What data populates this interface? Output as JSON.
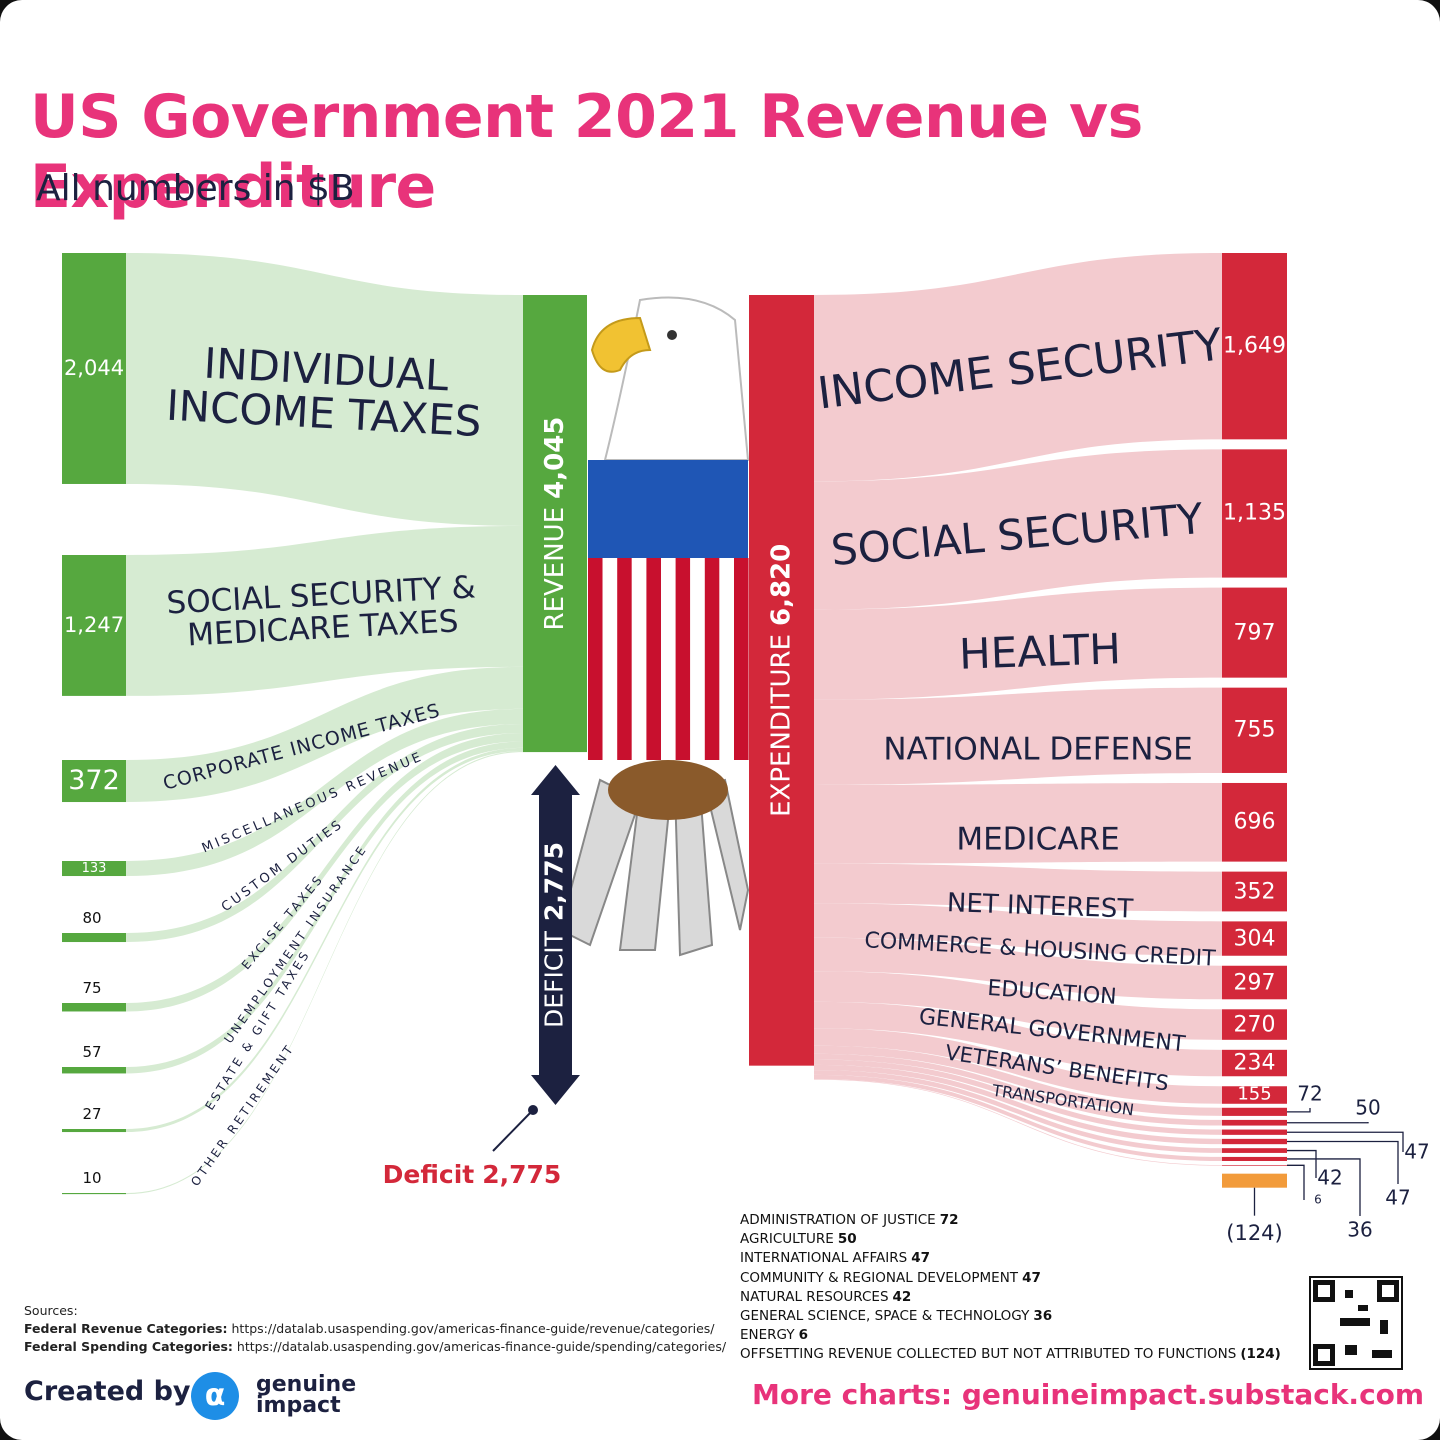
{
  "chart_data": {
    "type": "sankey",
    "title": "US Government 2021 Revenue vs Expenditure",
    "subtitle": "All numbers in $B",
    "revenue": {
      "label": "REVENUE",
      "value": 4045,
      "value_label": "4,045",
      "color": "#56a83f"
    },
    "expenditure": {
      "label": "EXPENDITURE",
      "value": 6820,
      "value_label": "6,820",
      "color": "#d3283a"
    },
    "deficit": {
      "label": "DEFICIT",
      "annotation": "Deficit",
      "value": 2775,
      "value_label": "2,775",
      "color": "#1c2140",
      "annotation_color": "#d3283a"
    },
    "sources": {
      "categories": [
        "INDIVIDUAL INCOME TAXES",
        "SOCIAL SECURITY & MEDICARE TAXES",
        "CORPORATE INCOME TAXES",
        "MISCELLANEOUS REVENUE",
        "CUSTOM DUTIES",
        "EXCISE TAXES",
        "UNEMPLOYMENT INSURANCE",
        "ESTATE & GIFT TAXES",
        "OTHER RETIREMENT"
      ],
      "values": [
        2044,
        1247,
        372,
        133,
        80,
        75,
        57,
        27,
        10
      ],
      "value_labels": [
        "2,044",
        "1,247",
        "372",
        "133",
        "80",
        "75",
        "57",
        "27",
        "10"
      ],
      "color": "#56a83f",
      "flow_color": "#d6ebd2"
    },
    "uses": {
      "categories": [
        "INCOME SECURITY",
        "SOCIAL SECURITY",
        "HEALTH",
        "NATIONAL DEFENSE",
        "MEDICARE",
        "NET INTEREST",
        "COMMERCE & HOUSING CREDIT",
        "EDUCATION",
        "GENERAL GOVERNMENT",
        "VETERANS’ BENEFITS",
        "TRANSPORTATION",
        "ADMINISTRATION OF JUSTICE",
        "AGRICULTURE",
        "INTERNATIONAL AFFAIRS",
        "COMMUNITY & REGIONAL DEVELOPMENT",
        "NATURAL RESOURCES",
        "GENERAL SCIENCE, SPACE & TECHNOLOGY",
        "ENERGY",
        "OFFSETTING REVENUE COLLECTED BUT NOT ATTRIBUTED TO FUNCTIONS"
      ],
      "values": [
        1649,
        1135,
        797,
        755,
        696,
        352,
        304,
        297,
        270,
        234,
        155,
        72,
        50,
        47,
        47,
        42,
        36,
        6,
        -124
      ],
      "value_labels": [
        "1,649",
        "1,135",
        "797",
        "755",
        "696",
        "352",
        "304",
        "297",
        "270",
        "234",
        "155",
        "72",
        "50",
        "47",
        "47",
        "42",
        "36",
        "6",
        "(124)"
      ],
      "color": "#d3283a",
      "flow_color": "#f3cbcf",
      "negative_color": "#f29b3b"
    }
  },
  "footer": {
    "sources_title": "Sources:",
    "sources": [
      {
        "label": "Federal Revenue Categories:",
        "url": "https://datalab.usaspending.gov/americas-finance-guide/revenue/categories/"
      },
      {
        "label": "Federal Spending Categories:",
        "url": "https://datalab.usaspending.gov/americas-finance-guide/spending/categories/"
      }
    ],
    "created_by": "Created by",
    "brand": [
      "genuine",
      "impact"
    ],
    "more_charts": "More charts: genuineimpact.substack.com"
  }
}
